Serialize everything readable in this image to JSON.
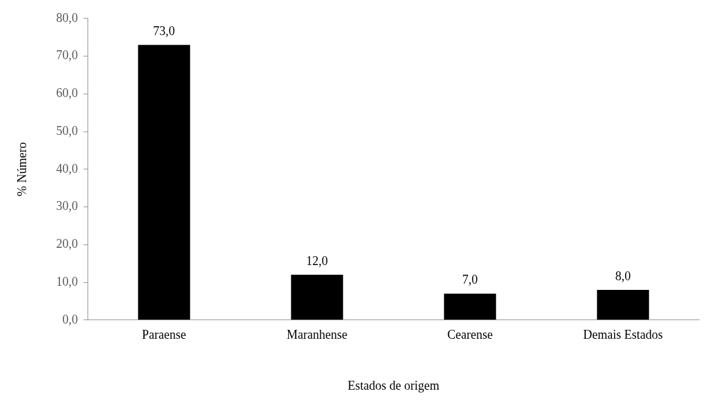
{
  "chart_data": {
    "type": "bar",
    "xlabel": "Estados de origem",
    "ylabel": "% Número",
    "categories": [
      "Paraense",
      "Maranhense",
      "Cearense",
      "Demais Estados"
    ],
    "values": [
      73,
      12,
      7,
      8
    ],
    "color": "#000000",
    "value_labels": [
      "73,0",
      "12,0",
      "7,0",
      "8,0"
    ],
    "ylim": [
      0,
      80
    ],
    "yticks": [
      {
        "value": 0,
        "label": "0,0"
      },
      {
        "value": 10,
        "label": "10,0"
      },
      {
        "value": 20,
        "label": "20,0"
      },
      {
        "value": 30,
        "label": "30,0"
      },
      {
        "value": 40,
        "label": "40,0"
      },
      {
        "value": 50,
        "label": "50,0"
      },
      {
        "value": 60,
        "label": "60,0"
      },
      {
        "value": 70,
        "label": "70,0"
      },
      {
        "value": 80,
        "label": "80,0"
      }
    ],
    "grid": false,
    "legend": false
  }
}
